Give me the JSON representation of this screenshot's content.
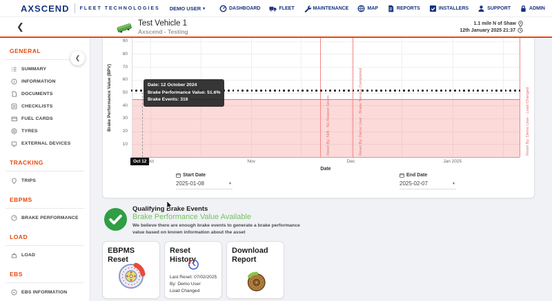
{
  "header": {
    "brand": "AXSCEND",
    "brand_sub": "FLEET TECHNOLOGIES",
    "user_menu": "DEMO USER",
    "nav": [
      {
        "id": "dashboard",
        "label": "DASHBOARD"
      },
      {
        "id": "fleet",
        "label": "FLEET"
      },
      {
        "id": "maintenance",
        "label": "MAINTENANCE"
      },
      {
        "id": "map",
        "label": "MAP"
      },
      {
        "id": "reports",
        "label": "REPORTS"
      },
      {
        "id": "installers",
        "label": "INSTALLERS"
      },
      {
        "id": "support",
        "label": "SUPPORT"
      },
      {
        "id": "admin",
        "label": "ADMIN"
      }
    ]
  },
  "vehicle_bar": {
    "title": "Test Vehicle 1",
    "subtitle": "Axscend - Testing",
    "location": "1.1 mile N of Shaw",
    "timestamp": "12th January 2025 21:37"
  },
  "sidebar": {
    "sections": [
      {
        "title": "GENERAL",
        "items": [
          {
            "id": "summary",
            "label": "SUMMARY"
          },
          {
            "id": "information",
            "label": "INFORMATION"
          },
          {
            "id": "documents",
            "label": "DOCUMENTS"
          },
          {
            "id": "checklists",
            "label": "CHECKLISTS"
          },
          {
            "id": "fuel-cards",
            "label": "FUEL CARDS"
          },
          {
            "id": "tyres",
            "label": "TYRES"
          },
          {
            "id": "external-devices",
            "label": "EXTERNAL DEVICES"
          }
        ]
      },
      {
        "title": "TRACKING",
        "items": [
          {
            "id": "trips",
            "label": "TRIPS"
          }
        ]
      },
      {
        "title": "EBPMS",
        "items": [
          {
            "id": "brake-performance",
            "label": "BRAKE PERFORMANCE"
          }
        ]
      },
      {
        "title": "LOAD",
        "items": [
          {
            "id": "load",
            "label": "LOAD"
          }
        ]
      },
      {
        "title": "EBS",
        "items": [
          {
            "id": "ebs-information",
            "label": "EBS INFORMATION"
          }
        ]
      }
    ]
  },
  "chart_data": {
    "type": "line",
    "xlabel": "Date",
    "ylabel": "Brake Performance Value (BPV)",
    "ylim": [
      0,
      92
    ],
    "yticks": [
      10,
      20,
      30,
      40,
      50,
      60,
      70,
      80,
      90
    ],
    "xticks": [
      {
        "label": "Oct",
        "pct": 4.8
      },
      {
        "label": "Nov",
        "pct": 30.8
      },
      {
        "label": "Dec",
        "pct": 56.5
      },
      {
        "label": "Jan 2025",
        "pct": 82.7
      }
    ],
    "series": [
      {
        "name": "Brake Performance Value",
        "style": "dotted",
        "value": 51.6,
        "points": 85
      }
    ],
    "threshold_band": {
      "from": 0,
      "to": 45,
      "color": "#f07070"
    },
    "reset_events": [
      {
        "label": "Reset By: N/A - No Reason Given",
        "pct": 48.6
      },
      {
        "label": "Reset By: Demo User - Brake Service Completed",
        "pct": 56.9
      },
      {
        "label": "Reset By: Demo User - Load Changed",
        "pct": 100
      }
    ],
    "tooltip": {
      "date": "Date: 12 October 2024",
      "value": "Brake Performance Value: 51.6%",
      "events": "Brake Events: 316"
    },
    "crosshair": {
      "label": "Oct 12",
      "pct": 2.7
    }
  },
  "filters": {
    "start": {
      "label": "Start Date",
      "value": "2025-01-08"
    },
    "end": {
      "label": "End Date",
      "value": "2025-02-07"
    }
  },
  "qualifying": {
    "title": "Qualifying Brake Events",
    "status": "Brake Performance Value Available",
    "body": "We believe there are enough brake events to generate a brake performance value based on known information about the asset"
  },
  "action_cards": {
    "ebpms_reset": {
      "title": "EBPMS Reset"
    },
    "reset_history": {
      "title": "Reset History",
      "lines": [
        "Last Reset: 07/02/2025",
        "By: Demo User",
        "Load Changed"
      ]
    },
    "download_report": {
      "title": "Download Report"
    }
  },
  "colors": {
    "accent_orange": "#e8470b",
    "navy": "#17357d",
    "chart_red": "#f28585",
    "green": "#2f9e44",
    "status_green": "#74c062"
  }
}
